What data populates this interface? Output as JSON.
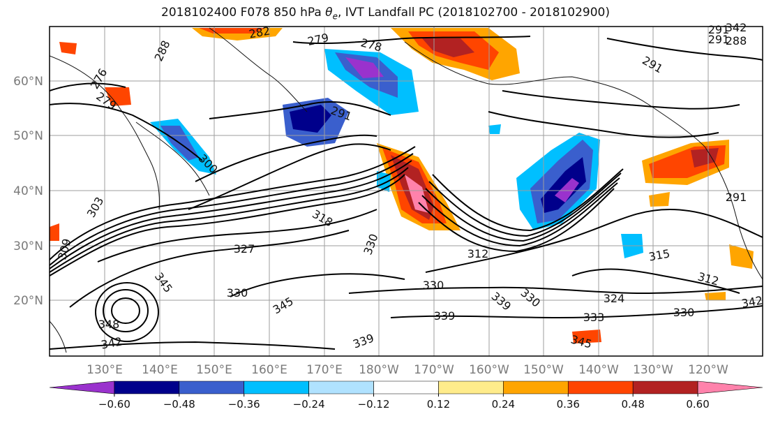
{
  "title": {
    "prefix": "2018102400 F078 850 hPa ",
    "symbol": "θ",
    "subscript": "e",
    "suffix": ", IVT Landfall PC (2018102700 - 2018102900)"
  },
  "map": {
    "lon_labels": [
      "130°E",
      "140°E",
      "150°E",
      "160°E",
      "170°E",
      "180°W",
      "170°W",
      "160°W",
      "150°W",
      "140°W",
      "130°W",
      "120°W"
    ],
    "lat_labels": [
      "60°N",
      "50°N",
      "40°N",
      "30°N",
      "20°N"
    ],
    "contour_labels": [
      "282",
      "279",
      "278",
      "288",
      "291",
      "276",
      "279",
      "291",
      "300",
      "291",
      "291",
      "303",
      "309",
      "327",
      "318",
      "330",
      "330",
      "312",
      "315",
      "312",
      "324",
      "330",
      "333",
      "342",
      "345",
      "345",
      "348",
      "342",
      "339",
      "339",
      "330",
      "330",
      "339",
      "345",
      "342",
      "288",
      "291",
      "315"
    ]
  },
  "colorbar": {
    "tick_labels": [
      "-0.60",
      "-0.48",
      "-0.36",
      "-0.24",
      "-0.12",
      "0.12",
      "0.24",
      "0.36",
      "0.48",
      "0.60"
    ],
    "colors": [
      "#9a32cd",
      "#00008b",
      "#3a5fcd",
      "#00bfff",
      "#b0e2ff",
      "#ffffff",
      "#ffec8b",
      "#ffa500",
      "#ff4500",
      "#b22222",
      "#ff82ab"
    ]
  }
}
